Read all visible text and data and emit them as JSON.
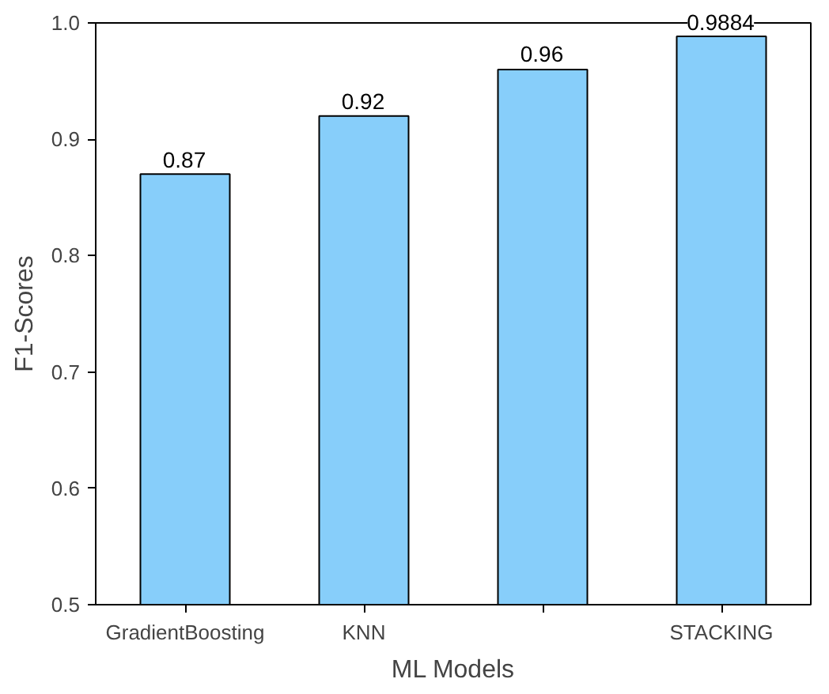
{
  "chart_data": {
    "type": "bar",
    "xlabel": "ML Models",
    "ylabel": "F1-Scores",
    "categories": [
      "GradientBoosting",
      "KNN",
      null,
      "STACKING"
    ],
    "values": [
      0.87,
      0.92,
      0.96,
      0.9884
    ],
    "color": "#87cefa",
    "ylim": [
      0.5,
      1.0
    ],
    "yticks": [
      0.5,
      0.6,
      0.7,
      0.8,
      0.9,
      {
        "value": 1.0,
        "label": "1.0"
      }
    ],
    "data_labels": true,
    "grid": false
  }
}
